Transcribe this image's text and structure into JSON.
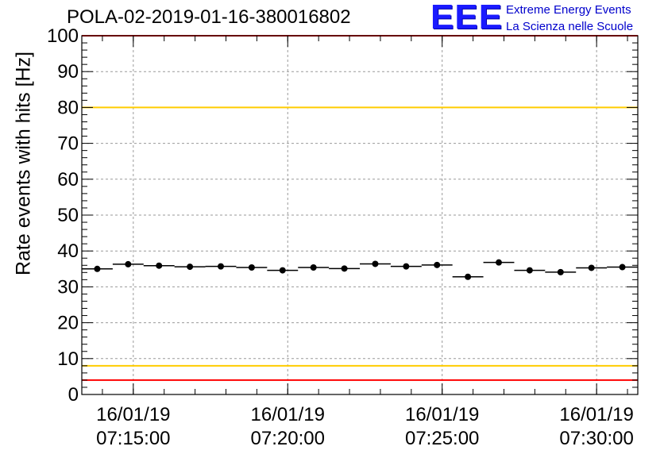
{
  "title": "POLA-02-2019-01-16-380016802",
  "logo": {
    "mark": "EEE",
    "line1": "Extreme Energy Events",
    "line2": "La Scienza nelle Scuole"
  },
  "colors": {
    "red_limit": "#ff0000",
    "yellow_limit": "#ffcc00",
    "marker": "#000000",
    "grid": "#9a9a9a",
    "logo": "#1a1aff"
  },
  "chart_data": {
    "type": "scatter",
    "title": "POLA-02-2019-01-16-380016802",
    "ylabel": "Rate events with hits [Hz]",
    "xlabel": "",
    "ylim": [
      0,
      100
    ],
    "yticks": [
      0,
      10,
      20,
      30,
      40,
      50,
      60,
      70,
      80,
      90,
      100
    ],
    "xlim": [
      "2019-01-16 07:13:20",
      "2019-01-16 07:31:20"
    ],
    "xticks": [
      {
        "time": "2019-01-16 07:15:00",
        "date": "16/01/19",
        "clock": "07:15:00"
      },
      {
        "time": "2019-01-16 07:20:00",
        "date": "16/01/19",
        "clock": "07:20:00"
      },
      {
        "time": "2019-01-16 07:25:00",
        "date": "16/01/19",
        "clock": "07:25:00"
      },
      {
        "time": "2019-01-16 07:30:00",
        "date": "16/01/19",
        "clock": "07:30:00"
      }
    ],
    "bin_width_s": 60,
    "grid": true,
    "horizontal_lines": [
      {
        "value": 100,
        "color": "#ff0000"
      },
      {
        "value": 80,
        "color": "#ffcc00"
      },
      {
        "value": 8,
        "color": "#ffcc00"
      },
      {
        "value": 4,
        "color": "#ff0000"
      }
    ],
    "x": [
      "07:13:50",
      "07:14:50",
      "07:15:50",
      "07:16:50",
      "07:17:50",
      "07:18:50",
      "07:19:50",
      "07:20:50",
      "07:21:50",
      "07:22:50",
      "07:23:50",
      "07:24:50",
      "07:25:50",
      "07:26:50",
      "07:27:50",
      "07:28:50",
      "07:29:50",
      "07:30:50"
    ],
    "y": [
      35.0,
      36.3,
      35.9,
      35.6,
      35.7,
      35.4,
      34.6,
      35.4,
      35.1,
      36.4,
      35.7,
      36.1,
      32.8,
      36.8,
      34.6,
      34.1,
      35.3,
      35.5
    ]
  }
}
